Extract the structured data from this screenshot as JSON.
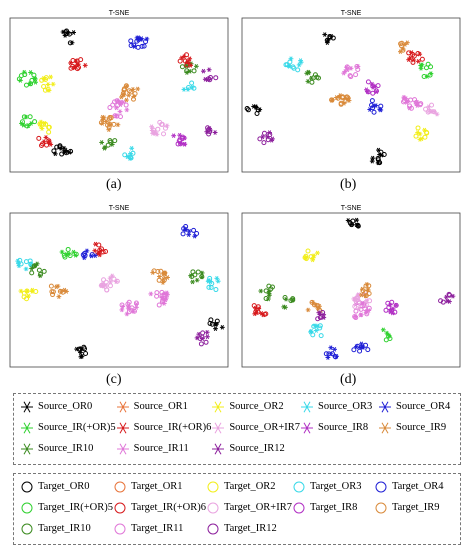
{
  "chart_data": [
    {
      "type": "scatter",
      "panel": "(a)",
      "title": "T-SNE",
      "clusters": [
        {
          "series": "Source_OR0",
          "x": 0.25,
          "y": 0.92,
          "n": 10
        },
        {
          "series": "Source_OR4",
          "x": 0.6,
          "y": 0.88,
          "n": 16
        },
        {
          "series": "Source_IR(+OR)6",
          "x": 0.3,
          "y": 0.72,
          "n": 14
        },
        {
          "series": "Source_IR(+OR)5",
          "x": 0.05,
          "y": 0.62,
          "n": 14
        },
        {
          "series": "Source_OR2",
          "x": 0.15,
          "y": 0.58,
          "n": 12
        },
        {
          "series": "Source_IR10",
          "x": 0.85,
          "y": 0.7,
          "n": 10
        },
        {
          "series": "Source_IR(+OR)6",
          "x": 0.83,
          "y": 0.75,
          "n": 10
        },
        {
          "series": "Source_IR12",
          "x": 0.95,
          "y": 0.65,
          "n": 8
        },
        {
          "series": "Source_IR9",
          "x": 0.55,
          "y": 0.52,
          "n": 18
        },
        {
          "series": "Source_IR11",
          "x": 0.5,
          "y": 0.4,
          "n": 18
        },
        {
          "series": "Source_IR9",
          "x": 0.45,
          "y": 0.3,
          "n": 16
        },
        {
          "series": "Source_IR(+OR)5",
          "x": 0.05,
          "y": 0.3,
          "n": 10
        },
        {
          "series": "Source_OR2",
          "x": 0.12,
          "y": 0.26,
          "n": 10
        },
        {
          "series": "Source_IR(+OR)6",
          "x": 0.13,
          "y": 0.15,
          "n": 10
        },
        {
          "series": "Source_OR0",
          "x": 0.22,
          "y": 0.1,
          "n": 14
        },
        {
          "series": "Source_OR3",
          "x": 0.55,
          "y": 0.08,
          "n": 8
        },
        {
          "series": "Source_IR10",
          "x": 0.45,
          "y": 0.15,
          "n": 8
        },
        {
          "series": "Source_OR+IR7",
          "x": 0.7,
          "y": 0.25,
          "n": 14
        },
        {
          "series": "Source_IR8",
          "x": 0.8,
          "y": 0.18,
          "n": 12
        },
        {
          "series": "Source_IR12",
          "x": 0.95,
          "y": 0.22,
          "n": 8
        },
        {
          "series": "Source_OR3",
          "x": 0.85,
          "y": 0.55,
          "n": 6
        }
      ]
    },
    {
      "type": "scatter",
      "panel": "(b)",
      "title": "T-SNE",
      "clusters": [
        {
          "series": "Source_OR0",
          "x": 0.4,
          "y": 0.92,
          "n": 8
        },
        {
          "series": "Source_IR(+OR)6",
          "x": 0.82,
          "y": 0.78,
          "n": 12
        },
        {
          "series": "Source_IR(+OR)5",
          "x": 0.87,
          "y": 0.68,
          "n": 10
        },
        {
          "series": "Source_IR9",
          "x": 0.75,
          "y": 0.85,
          "n": 8
        },
        {
          "series": "Source_OR3",
          "x": 0.22,
          "y": 0.72,
          "n": 12
        },
        {
          "series": "Source_IR10",
          "x": 0.3,
          "y": 0.62,
          "n": 10
        },
        {
          "series": "Source_IR11",
          "x": 0.5,
          "y": 0.68,
          "n": 12
        },
        {
          "series": "Source_IR8",
          "x": 0.6,
          "y": 0.55,
          "n": 12
        },
        {
          "series": "Source_IR9",
          "x": 0.45,
          "y": 0.45,
          "n": 18
        },
        {
          "series": "Source_OR4",
          "x": 0.62,
          "y": 0.42,
          "n": 10
        },
        {
          "series": "Source_IR11",
          "x": 0.8,
          "y": 0.45,
          "n": 18
        },
        {
          "series": "Source_OR0",
          "x": 0.02,
          "y": 0.4,
          "n": 8
        },
        {
          "series": "Source_OR+IR7",
          "x": 0.9,
          "y": 0.38,
          "n": 10
        },
        {
          "series": "Source_IR12",
          "x": 0.08,
          "y": 0.2,
          "n": 10
        },
        {
          "series": "Source_OR2",
          "x": 0.85,
          "y": 0.22,
          "n": 10
        },
        {
          "series": "Source_OR0",
          "x": 0.63,
          "y": 0.05,
          "n": 12
        }
      ]
    },
    {
      "type": "scatter",
      "panel": "(c)",
      "title": "T-SNE",
      "clusters": [
        {
          "series": "Source_OR4",
          "x": 0.85,
          "y": 0.92,
          "n": 10
        },
        {
          "series": "Source_IR(+OR)6",
          "x": 0.4,
          "y": 0.8,
          "n": 10
        },
        {
          "series": "Source_IR(+OR)5",
          "x": 0.25,
          "y": 0.75,
          "n": 10
        },
        {
          "series": "Source_OR4",
          "x": 0.35,
          "y": 0.74,
          "n": 8
        },
        {
          "series": "Source_OR3",
          "x": 0.03,
          "y": 0.7,
          "n": 10
        },
        {
          "series": "Source_IR10",
          "x": 0.1,
          "y": 0.65,
          "n": 10
        },
        {
          "series": "Source_IR10",
          "x": 0.88,
          "y": 0.6,
          "n": 10
        },
        {
          "series": "Source_OR3",
          "x": 0.97,
          "y": 0.55,
          "n": 10
        },
        {
          "series": "Source_IR9",
          "x": 0.7,
          "y": 0.6,
          "n": 14
        },
        {
          "series": "Source_IR9",
          "x": 0.2,
          "y": 0.5,
          "n": 12
        },
        {
          "series": "Source_OR2",
          "x": 0.05,
          "y": 0.48,
          "n": 10
        },
        {
          "series": "Source_OR+IR7",
          "x": 0.45,
          "y": 0.55,
          "n": 18
        },
        {
          "series": "Source_IR11",
          "x": 0.7,
          "y": 0.45,
          "n": 18
        },
        {
          "series": "Source_IR11",
          "x": 0.55,
          "y": 0.38,
          "n": 16
        },
        {
          "series": "Source_OR0",
          "x": 0.98,
          "y": 0.25,
          "n": 8
        },
        {
          "series": "Source_IR12",
          "x": 0.92,
          "y": 0.15,
          "n": 10
        },
        {
          "series": "Source_OR0",
          "x": 0.3,
          "y": 0.05,
          "n": 10
        }
      ]
    },
    {
      "type": "scatter",
      "panel": "(d)",
      "title": "T-SNE",
      "clusters": [
        {
          "series": "Source_OR0",
          "x": 0.5,
          "y": 0.98,
          "n": 10
        },
        {
          "series": "Source_OR2",
          "x": 0.3,
          "y": 0.75,
          "n": 10
        },
        {
          "series": "Source_IR10",
          "x": 0.09,
          "y": 0.48,
          "n": 10
        },
        {
          "series": "Source_IR10",
          "x": 0.18,
          "y": 0.42,
          "n": 8
        },
        {
          "series": "Source_IR(+OR)6",
          "x": 0.05,
          "y": 0.35,
          "n": 12
        },
        {
          "series": "Source_IR9",
          "x": 0.32,
          "y": 0.38,
          "n": 10
        },
        {
          "series": "Source_IR12",
          "x": 0.35,
          "y": 0.3,
          "n": 8
        },
        {
          "series": "Source_OR3",
          "x": 0.33,
          "y": 0.2,
          "n": 10
        },
        {
          "series": "Source_IR11",
          "x": 0.55,
          "y": 0.35,
          "n": 20
        },
        {
          "series": "Source_OR+IR7",
          "x": 0.55,
          "y": 0.42,
          "n": 16
        },
        {
          "series": "Source_IR9",
          "x": 0.58,
          "y": 0.5,
          "n": 12
        },
        {
          "series": "Source_IR8",
          "x": 0.7,
          "y": 0.38,
          "n": 12
        },
        {
          "series": "Source_IR12",
          "x": 0.97,
          "y": 0.45,
          "n": 8
        },
        {
          "series": "Source_OR4",
          "x": 0.4,
          "y": 0.05,
          "n": 10
        },
        {
          "series": "Source_OR4",
          "x": 0.55,
          "y": 0.08,
          "n": 10
        },
        {
          "series": "Source_IR(+OR)5",
          "x": 0.68,
          "y": 0.18,
          "n": 6
        }
      ]
    }
  ],
  "panel_labels": [
    "(a)",
    "(b)",
    "(c)",
    "(d)"
  ],
  "panel_title": "T-SNE",
  "legend_source": [
    {
      "label": "Source_OR0",
      "color": "#000000",
      "marker": "asterisk"
    },
    {
      "label": "Source_OR1",
      "color": "#e8743b",
      "marker": "asterisk"
    },
    {
      "label": "Source_OR2",
      "color": "#f2ee1a",
      "marker": "asterisk"
    },
    {
      "label": "Source_OR3",
      "color": "#38d9e8",
      "marker": "asterisk"
    },
    {
      "label": "Source_OR4",
      "color": "#1f1fd6",
      "marker": "asterisk"
    },
    {
      "label": "Source_IR(+OR)5",
      "color": "#2ed12e",
      "marker": "asterisk"
    },
    {
      "label": "Source_IR(+OR)6",
      "color": "#d7191c",
      "marker": "asterisk"
    },
    {
      "label": "Source_OR+IR7",
      "color": "#e9a3e0",
      "marker": "asterisk"
    },
    {
      "label": "Source_IR8",
      "color": "#b12fc4",
      "marker": "asterisk"
    },
    {
      "label": "Source_IR9",
      "color": "#d98a3a",
      "marker": "asterisk"
    },
    {
      "label": "Source_IR10",
      "color": "#3a8a1e",
      "marker": "asterisk"
    },
    {
      "label": "Source_IR11",
      "color": "#e077d8",
      "marker": "asterisk"
    },
    {
      "label": "Source_IR12",
      "color": "#8c1f9c",
      "marker": "asterisk"
    }
  ],
  "legend_target": [
    {
      "label": "Target_OR0",
      "color": "#000000",
      "marker": "circle"
    },
    {
      "label": "Target_OR1",
      "color": "#e8743b",
      "marker": "circle"
    },
    {
      "label": "Target_OR2",
      "color": "#f2ee1a",
      "marker": "circle"
    },
    {
      "label": "Target_OR3",
      "color": "#38d9e8",
      "marker": "circle"
    },
    {
      "label": "Target_OR4",
      "color": "#1f1fd6",
      "marker": "circle"
    },
    {
      "label": "Target_IR(+OR)5",
      "color": "#2ed12e",
      "marker": "circle"
    },
    {
      "label": "Target_IR(+OR)6",
      "color": "#d7191c",
      "marker": "circle"
    },
    {
      "label": "Target_OR+IR7",
      "color": "#e9a3e0",
      "marker": "circle"
    },
    {
      "label": "Target_IR8",
      "color": "#b12fc4",
      "marker": "circle"
    },
    {
      "label": "Target_IR9",
      "color": "#d98a3a",
      "marker": "circle"
    },
    {
      "label": "Target_IR10",
      "color": "#3a8a1e",
      "marker": "circle"
    },
    {
      "label": "Target_IR11",
      "color": "#e077d8",
      "marker": "circle"
    },
    {
      "label": "Target_IR12",
      "color": "#8c1f9c",
      "marker": "circle"
    }
  ]
}
